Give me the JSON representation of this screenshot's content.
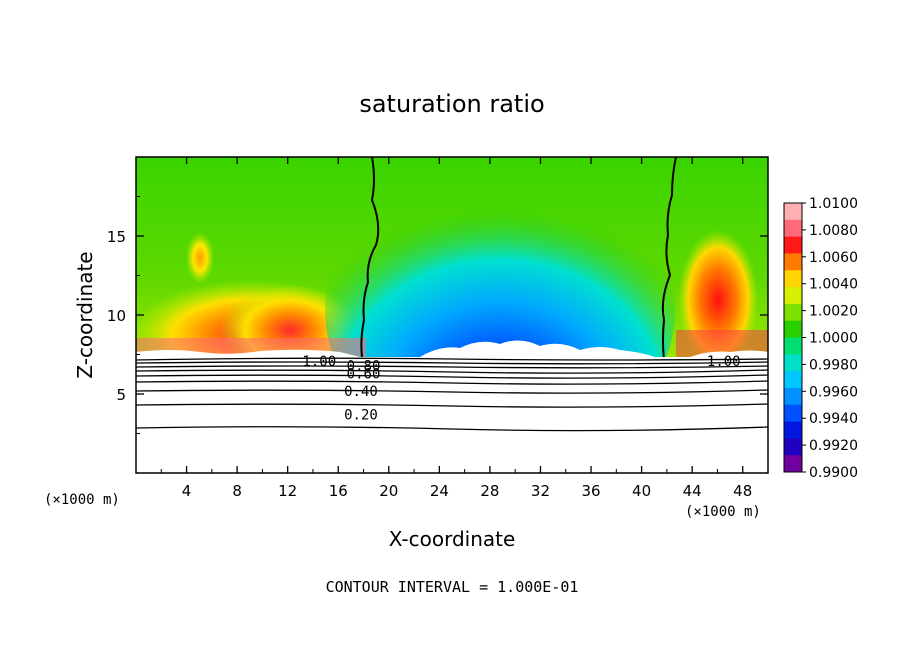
{
  "chart_data": {
    "type": "heatmap",
    "title": "saturation ratio",
    "xlabel": "X-coordinate",
    "ylabel": "Z-coordinate",
    "x_unit_left": "(×1000 m)",
    "x_unit_right": "(×1000 m)",
    "xlim": [
      0,
      50
    ],
    "ylim": [
      0,
      20
    ],
    "x_ticks": [
      4,
      8,
      12,
      16,
      20,
      24,
      28,
      32,
      36,
      40,
      44,
      48
    ],
    "y_ticks": [
      5,
      10,
      15
    ],
    "footer": "CONTOUR INTERVAL = 1.000E-01",
    "colorbar": {
      "labels": [
        "1.0100",
        "1.0080",
        "1.0060",
        "1.0040",
        "1.0020",
        "1.0000",
        "0.9980",
        "0.9960",
        "0.9940",
        "0.9920",
        "0.9900"
      ],
      "colors": [
        "#ffb0b0",
        "#ff6a7a",
        "#ff1a1a",
        "#ff7a00",
        "#ffd400",
        "#d8f000",
        "#7ee000",
        "#28d000",
        "#00e070",
        "#00e0c8",
        "#00c8ff",
        "#0090ff",
        "#0050ff",
        "#0018e0",
        "#2000c0",
        "#7000a0"
      ]
    },
    "contour_labels": [
      {
        "text": "1.00",
        "x": 14.5,
        "y": 7.1
      },
      {
        "text": "0.80",
        "x": 18.0,
        "y": 6.8
      },
      {
        "text": "0.60",
        "x": 18.0,
        "y": 6.3
      },
      {
        "text": "0.40",
        "x": 17.8,
        "y": 5.2
      },
      {
        "text": "0.20",
        "x": 17.8,
        "y": 3.7
      },
      {
        "text": "1.00",
        "x": 46.5,
        "y": 7.1
      }
    ],
    "boundary_z_km": 7.2
  }
}
